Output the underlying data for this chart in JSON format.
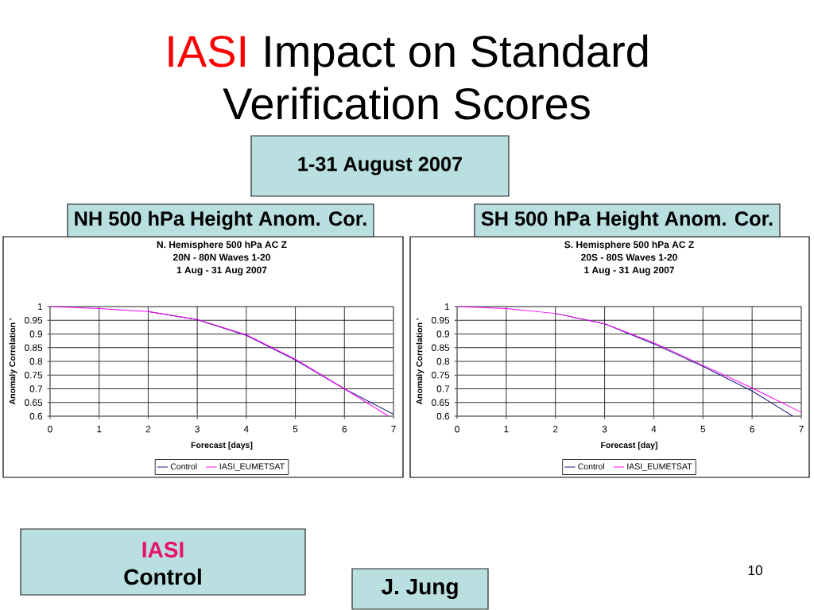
{
  "chart_data": [
    {
      "type": "line",
      "title": "N. Hemisphere 500 hPa AC Z",
      "subtitle": "20N - 80N Waves 1-20",
      "xlabel": "Forecast [days]",
      "ylabel": "Anomaly Correlation '",
      "x": [
        0,
        1,
        2,
        3,
        4,
        5,
        6,
        6.9
      ],
      "series": [
        {
          "name": "Control",
          "color": "#1a1a80",
          "x": [
            2,
            3,
            4,
            5,
            6,
            7
          ],
          "values": [
            0.982,
            0.952,
            0.895,
            0.805,
            0.7,
            0.607
          ]
        },
        {
          "name": "IASI_EUMETSAT",
          "color": "#ff00ff",
          "values": [
            1,
            0.993,
            0.982,
            0.953,
            0.897,
            0.808,
            0.7,
            0.6
          ]
        }
      ],
      "xlim": [
        0,
        7
      ],
      "xticks": [
        0,
        1,
        2,
        3,
        4,
        5,
        6,
        7
      ],
      "ylim": [
        0.6,
        1
      ],
      "yticks": [
        0.6,
        0.65,
        0.7,
        0.75,
        0.8,
        0.85,
        0.9,
        0.95,
        1
      ],
      "grid": true,
      "legend": "bottom",
      "annotations": [
        "1 Aug - 31 Aug 2007",
        "IASI",
        "Impact on Standard",
        "Verification Scores",
        "1-31 August 2007",
        "NH 500 hPa Height Anom. Cor.",
        "IASI",
        "Control",
        "J. Jung",
        "10"
      ]
    },
    {
      "type": "line",
      "title": "S. Hemisphere 500 hPa AC Z",
      "subtitle": "20S - 80S Waves 1-20",
      "xlabel": "Forecast [day]",
      "ylabel": "Anomaly Correlation '",
      "x": [
        0,
        1,
        2,
        3,
        4,
        5,
        6,
        7
      ],
      "series": [
        {
          "name": "Control",
          "color": "#1a1a80",
          "x": [
            2,
            3,
            4,
            5,
            6,
            6.83
          ],
          "values": [
            0.975,
            0.937,
            0.864,
            0.782,
            0.692,
            0.6
          ]
        },
        {
          "name": "IASI_EUMETSAT",
          "color": "#ff00ff",
          "values": [
            1,
            0.993,
            0.975,
            0.938,
            0.868,
            0.786,
            0.703,
            0.614
          ]
        }
      ],
      "xlim": [
        0,
        7
      ],
      "xticks": [
        0,
        1,
        2,
        3,
        4,
        5,
        6,
        7
      ],
      "ylim": [
        0.6,
        1
      ],
      "yticks": [
        0.6,
        0.65,
        0.7,
        0.75,
        0.8,
        0.85,
        0.9,
        0.95,
        1
      ],
      "grid": true,
      "legend": "bottom",
      "annotations": [
        "1 Aug - 31 Aug 2007",
        "SH 500 hPa Height Anom. Cor."
      ]
    }
  ]
}
